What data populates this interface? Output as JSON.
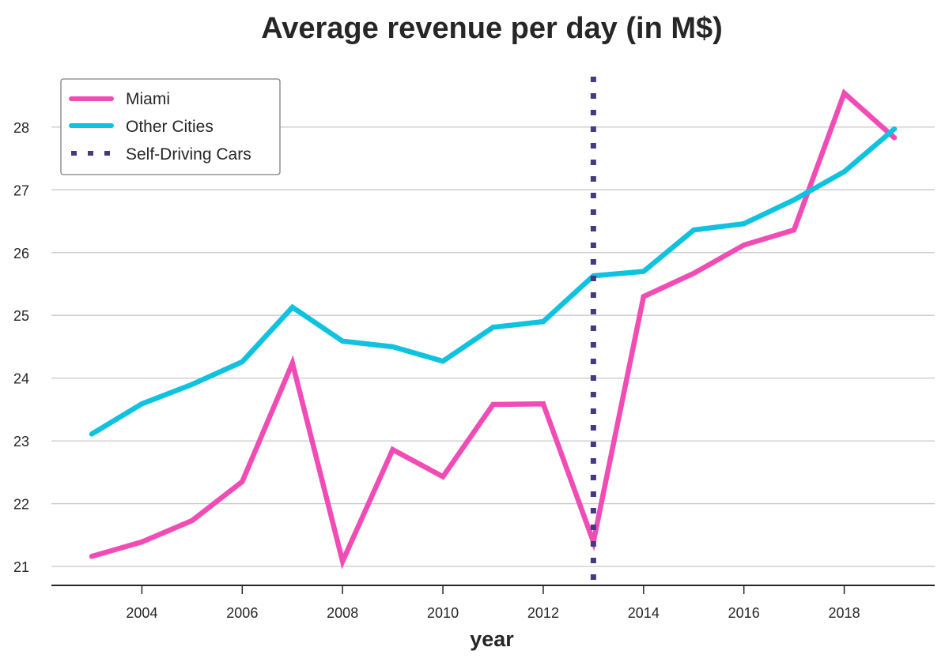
{
  "chart_data": {
    "type": "line",
    "title": "Average revenue per day (in M$)",
    "xlabel": "year",
    "ylabel": "",
    "x": [
      2003,
      2004,
      2005,
      2006,
      2007,
      2008,
      2009,
      2010,
      2011,
      2012,
      2013,
      2014,
      2015,
      2016,
      2017,
      2018,
      2019
    ],
    "xlim": [
      2001.2,
      2019.8
    ],
    "ylim": [
      20.7,
      28.8
    ],
    "xticks": [
      2004,
      2006,
      2008,
      2010,
      2012,
      2014,
      2016,
      2018
    ],
    "xtick_labels": [
      "2004",
      "2006",
      "2008",
      "2010",
      "2012",
      "2014",
      "2016",
      "2018"
    ],
    "yticks": [
      21,
      22,
      23,
      24,
      25,
      26,
      27,
      28
    ],
    "ytick_labels": [
      "21",
      "22",
      "23",
      "24",
      "25",
      "26",
      "27",
      "28"
    ],
    "grid": "horizontal",
    "legend_position": "top-left",
    "series": [
      {
        "name": "Miami",
        "color": "#f14cb5",
        "style": "solid",
        "values": [
          21.16,
          21.39,
          21.73,
          22.35,
          24.24,
          21.08,
          22.86,
          22.43,
          23.58,
          23.59,
          21.39,
          25.3,
          25.67,
          26.12,
          26.36,
          28.54,
          27.83
        ]
      },
      {
        "name": "Other Cities",
        "color": "#0fc2e0",
        "style": "solid",
        "values": [
          23.11,
          23.59,
          23.9,
          24.26,
          25.13,
          24.59,
          24.5,
          24.27,
          24.81,
          24.9,
          25.63,
          25.7,
          26.36,
          26.46,
          26.84,
          27.29,
          27.97
        ]
      }
    ],
    "annotations": [
      {
        "type": "vline",
        "name": "Self-Driving Cars",
        "x": 2013,
        "color": "#453981",
        "style": "dotted"
      }
    ],
    "legend": [
      "Miami",
      "Other Cities",
      "Self-Driving Cars"
    ]
  }
}
